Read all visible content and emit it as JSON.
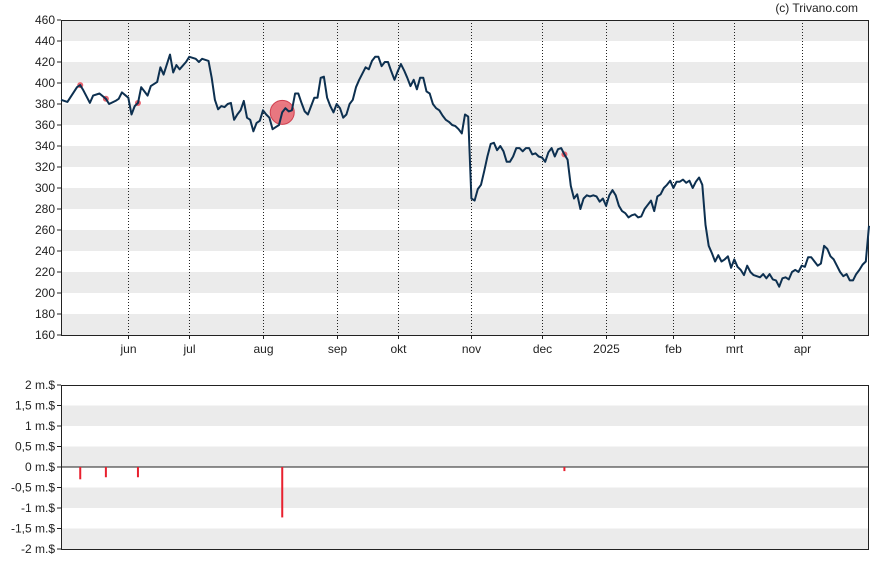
{
  "copyright": "(c) Trivano.com",
  "chart_data": [
    {
      "type": "line",
      "name": "price",
      "ylim": [
        160,
        460
      ],
      "y_ticks": [
        160,
        180,
        200,
        220,
        240,
        260,
        280,
        300,
        320,
        340,
        360,
        380,
        400,
        420,
        440,
        460
      ],
      "x_index_range": [
        0,
        252
      ],
      "month_labels": [
        {
          "label": "jun",
          "index": 21
        },
        {
          "label": "jul",
          "index": 40
        },
        {
          "label": "aug",
          "index": 63
        },
        {
          "label": "sep",
          "index": 86
        },
        {
          "label": "okt",
          "index": 105
        },
        {
          "label": "nov",
          "index": 128
        },
        {
          "label": "dec",
          "index": 150
        },
        {
          "label": "2025",
          "index": 170
        },
        {
          "label": "feb",
          "index": 191
        },
        {
          "label": "mrt",
          "index": 210
        },
        {
          "label": "apr",
          "index": 231
        }
      ],
      "grid": true,
      "line_color": "#0d3050",
      "band_color": "#ebebeb",
      "marker_color": "#e8636d",
      "highlight_marker": {
        "index": 69,
        "value": 372
      },
      "series_keypoints": [
        [
          0,
          384
        ],
        [
          2,
          382
        ],
        [
          5,
          396
        ],
        [
          6,
          398
        ],
        [
          7,
          393
        ],
        [
          9,
          381
        ],
        [
          10,
          388
        ],
        [
          12,
          390
        ],
        [
          14,
          385
        ],
        [
          15,
          380
        ],
        [
          17,
          383
        ],
        [
          18,
          385
        ],
        [
          19,
          391
        ],
        [
          21,
          386
        ],
        [
          22,
          370
        ],
        [
          23,
          378
        ],
        [
          24,
          381
        ],
        [
          25,
          396
        ],
        [
          26,
          392
        ],
        [
          27,
          388
        ],
        [
          28,
          397
        ],
        [
          30,
          401
        ],
        [
          31,
          415
        ],
        [
          32,
          408
        ],
        [
          34,
          427
        ],
        [
          35,
          410
        ],
        [
          36,
          417
        ],
        [
          37,
          413
        ],
        [
          39,
          420
        ],
        [
          40,
          425
        ],
        [
          42,
          423
        ],
        [
          43,
          420
        ],
        [
          44,
          423
        ],
        [
          46,
          421
        ],
        [
          47,
          405
        ],
        [
          48,
          384
        ],
        [
          49,
          375
        ],
        [
          50,
          378
        ],
        [
          51,
          377
        ],
        [
          52,
          380
        ],
        [
          53,
          381
        ],
        [
          54,
          365
        ],
        [
          55,
          370
        ],
        [
          56,
          374
        ],
        [
          57,
          383
        ],
        [
          58,
          367
        ],
        [
          59,
          365
        ],
        [
          60,
          354
        ],
        [
          61,
          362
        ],
        [
          62,
          364
        ],
        [
          63,
          374
        ],
        [
          64,
          370
        ],
        [
          65,
          367
        ],
        [
          66,
          356
        ],
        [
          67,
          358
        ],
        [
          68,
          360
        ],
        [
          69,
          372
        ],
        [
          70,
          376
        ],
        [
          71,
          373
        ],
        [
          72,
          374
        ],
        [
          73,
          390
        ],
        [
          74,
          390
        ],
        [
          75,
          381
        ],
        [
          76,
          373
        ],
        [
          77,
          370
        ],
        [
          78,
          378
        ],
        [
          79,
          386
        ],
        [
          80,
          386
        ],
        [
          81,
          405
        ],
        [
          82,
          406
        ],
        [
          83,
          386
        ],
        [
          84,
          378
        ],
        [
          85,
          372
        ],
        [
          86,
          380
        ],
        [
          87,
          376
        ],
        [
          88,
          367
        ],
        [
          89,
          370
        ],
        [
          90,
          380
        ],
        [
          91,
          384
        ],
        [
          92,
          396
        ],
        [
          93,
          403
        ],
        [
          94,
          409
        ],
        [
          95,
          415
        ],
        [
          96,
          413
        ],
        [
          97,
          421
        ],
        [
          98,
          425
        ],
        [
          99,
          425
        ],
        [
          100,
          416
        ],
        [
          101,
          420
        ],
        [
          102,
          420
        ],
        [
          103,
          411
        ],
        [
          104,
          403
        ],
        [
          105,
          411
        ],
        [
          106,
          418
        ],
        [
          107,
          412
        ],
        [
          108,
          405
        ],
        [
          109,
          397
        ],
        [
          110,
          403
        ],
        [
          111,
          394
        ],
        [
          112,
          405
        ],
        [
          113,
          405
        ],
        [
          114,
          392
        ],
        [
          115,
          390
        ],
        [
          116,
          380
        ],
        [
          117,
          376
        ],
        [
          118,
          374
        ],
        [
          119,
          369
        ],
        [
          120,
          365
        ],
        [
          121,
          363
        ],
        [
          122,
          360
        ],
        [
          123,
          359
        ],
        [
          124,
          356
        ],
        [
          125,
          352
        ],
        [
          126,
          370
        ],
        [
          127,
          368
        ],
        [
          128,
          290
        ],
        [
          129,
          288
        ],
        [
          130,
          299
        ],
        [
          131,
          303
        ],
        [
          132,
          316
        ],
        [
          133,
          330
        ],
        [
          134,
          342
        ],
        [
          135,
          343
        ],
        [
          136,
          336
        ],
        [
          137,
          340
        ],
        [
          138,
          335
        ],
        [
          139,
          325
        ],
        [
          140,
          325
        ],
        [
          141,
          330
        ],
        [
          142,
          338
        ],
        [
          143,
          338
        ],
        [
          144,
          335
        ],
        [
          145,
          338
        ],
        [
          146,
          338
        ],
        [
          147,
          332
        ],
        [
          148,
          333
        ],
        [
          149,
          330
        ],
        [
          150,
          329
        ],
        [
          151,
          325
        ],
        [
          152,
          334
        ],
        [
          153,
          338
        ],
        [
          154,
          330
        ],
        [
          155,
          337
        ],
        [
          156,
          338
        ],
        [
          157,
          332
        ],
        [
          158,
          327
        ],
        [
          159,
          302
        ],
        [
          160,
          290
        ],
        [
          161,
          294
        ],
        [
          162,
          280
        ],
        [
          163,
          290
        ],
        [
          164,
          293
        ],
        [
          165,
          292
        ],
        [
          166,
          293
        ],
        [
          167,
          292
        ],
        [
          168,
          287
        ],
        [
          169,
          290
        ],
        [
          170,
          283
        ],
        [
          171,
          293
        ],
        [
          172,
          298
        ],
        [
          173,
          293
        ],
        [
          174,
          283
        ],
        [
          175,
          278
        ],
        [
          176,
          276
        ],
        [
          177,
          272
        ],
        [
          178,
          274
        ],
        [
          179,
          275
        ],
        [
          180,
          272
        ],
        [
          181,
          273
        ],
        [
          182,
          280
        ],
        [
          183,
          284
        ],
        [
          184,
          288
        ],
        [
          185,
          278
        ],
        [
          186,
          292
        ],
        [
          187,
          294
        ],
        [
          188,
          300
        ],
        [
          189,
          303
        ],
        [
          190,
          307
        ],
        [
          191,
          300
        ],
        [
          192,
          306
        ],
        [
          193,
          306
        ],
        [
          194,
          308
        ],
        [
          195,
          305
        ],
        [
          196,
          307
        ],
        [
          197,
          300
        ],
        [
          198,
          306
        ],
        [
          199,
          310
        ],
        [
          200,
          303
        ],
        [
          201,
          265
        ],
        [
          202,
          245
        ],
        [
          203,
          238
        ],
        [
          204,
          230
        ],
        [
          205,
          236
        ],
        [
          206,
          230
        ],
        [
          207,
          232
        ],
        [
          208,
          235
        ],
        [
          209,
          224
        ],
        [
          210,
          232
        ],
        [
          211,
          225
        ],
        [
          212,
          222
        ],
        [
          213,
          217
        ],
        [
          214,
          226
        ],
        [
          215,
          220
        ],
        [
          216,
          217
        ],
        [
          217,
          216
        ],
        [
          218,
          215
        ],
        [
          219,
          218
        ],
        [
          220,
          214
        ],
        [
          221,
          218
        ],
        [
          222,
          213
        ],
        [
          223,
          212
        ],
        [
          224,
          206
        ],
        [
          225,
          214
        ],
        [
          226,
          215
        ],
        [
          227,
          213
        ],
        [
          228,
          220
        ],
        [
          229,
          222
        ],
        [
          230,
          220
        ],
        [
          231,
          226
        ],
        [
          232,
          225
        ],
        [
          233,
          234
        ],
        [
          234,
          234
        ],
        [
          235,
          230
        ],
        [
          236,
          226
        ],
        [
          237,
          228
        ],
        [
          238,
          245
        ],
        [
          239,
          242
        ],
        [
          240,
          235
        ],
        [
          241,
          232
        ],
        [
          242,
          226
        ],
        [
          243,
          220
        ],
        [
          244,
          216
        ],
        [
          245,
          218
        ],
        [
          246,
          212
        ],
        [
          247,
          212
        ],
        [
          248,
          218
        ],
        [
          249,
          222
        ],
        [
          250,
          227
        ],
        [
          251,
          230
        ],
        [
          252,
          264
        ]
      ]
    },
    {
      "type": "bar",
      "name": "insider-transactions",
      "ylim": [
        -2000000,
        2000000
      ],
      "y_tick_labels": [
        "2 m.$",
        "1,5 m.$",
        "1 m.$",
        "0,5 m.$",
        "0 m.$",
        "-0,5 m.$",
        "-1 m.$",
        "-1,5 m.$",
        "-2 m.$"
      ],
      "y_tick_values": [
        2000000,
        1500000,
        1000000,
        500000,
        0,
        -500000,
        -1000000,
        -1500000,
        -2000000
      ],
      "x_index_range": [
        0,
        252
      ],
      "grid": true,
      "bar_color": "#e8202e",
      "bars": [
        {
          "index": 6,
          "value": -300000
        },
        {
          "index": 14,
          "value": -250000
        },
        {
          "index": 24,
          "value": -250000
        },
        {
          "index": 69,
          "value": -1230000
        },
        {
          "index": 157,
          "value": -100000
        }
      ]
    }
  ]
}
